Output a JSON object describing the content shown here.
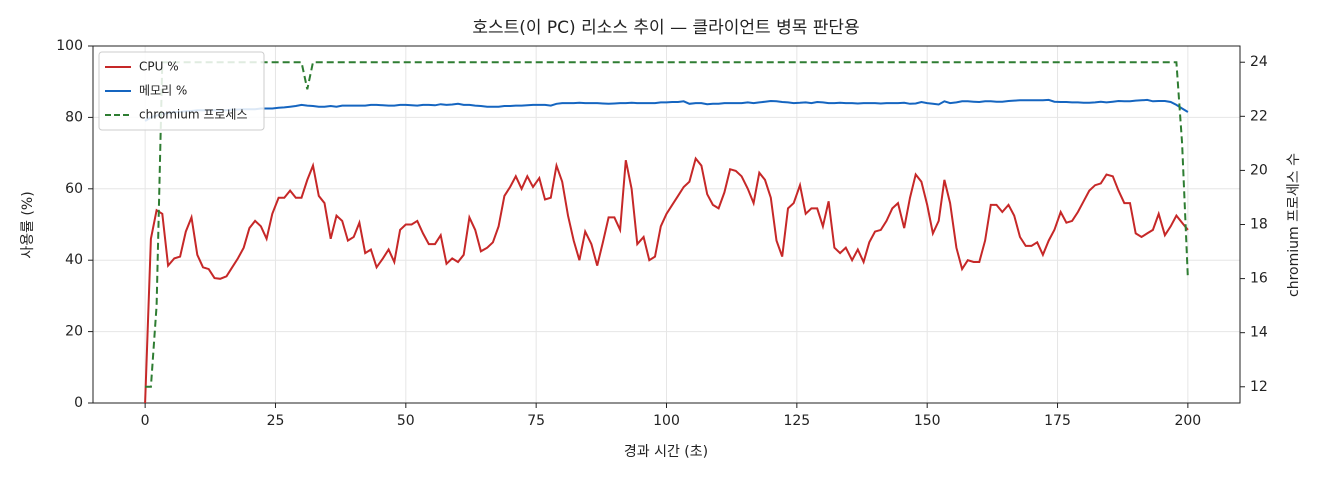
{
  "chart_data": {
    "type": "line",
    "title": "호스트(이 PC) 리소스 추이 — 클라이언트 병목 판단용",
    "xlabel": "경과 시간 (초)",
    "ylabel": "사용률 (%)",
    "y2label": "chromium 프로세스 수",
    "x": [
      0,
      1.1,
      2.2,
      3.3,
      4.4,
      5.6,
      6.7,
      7.8,
      8.9,
      10,
      11.1,
      12.2,
      13.3,
      14.4,
      15.6,
      16.7,
      17.8,
      18.9,
      20,
      21.1,
      22.2,
      23.3,
      24.4,
      25.6,
      26.7,
      27.8,
      28.9,
      30,
      31.1,
      32.2,
      33.3,
      34.4,
      35.6,
      36.7,
      37.8,
      38.9,
      40,
      41.1,
      42.2,
      43.3,
      44.4,
      45.6,
      46.7,
      47.8,
      48.9,
      50,
      51.1,
      52.2,
      53.3,
      54.4,
      55.6,
      56.7,
      57.8,
      58.9,
      60,
      61.1,
      62.2,
      63.3,
      64.4,
      65.6,
      66.7,
      67.8,
      68.9,
      70,
      71.1,
      72.2,
      73.3,
      74.4,
      75.6,
      76.7,
      77.8,
      78.9,
      80,
      81.1,
      82.2,
      83.3,
      84.4,
      85.6,
      86.7,
      87.8,
      88.9,
      90,
      91.1,
      92.2,
      93.3,
      94.4,
      95.6,
      96.7,
      97.8,
      98.9,
      100,
      101.1,
      102.2,
      103.3,
      104.4,
      105.6,
      106.7,
      107.8,
      108.9,
      110,
      111.1,
      112.2,
      113.3,
      114.4,
      115.6,
      116.7,
      117.8,
      118.9,
      120,
      121.1,
      122.2,
      123.3,
      124.4,
      125.6,
      126.7,
      127.8,
      128.9,
      130,
      131.1,
      132.2,
      133.3,
      134.4,
      135.6,
      136.7,
      137.8,
      138.9,
      140,
      141.1,
      142.2,
      143.3,
      144.4,
      145.6,
      146.7,
      147.8,
      148.9,
      150,
      151.1,
      152.2,
      153.3,
      154.4,
      155.6,
      156.7,
      157.8,
      158.9,
      160,
      161.1,
      162.2,
      163.3,
      164.4,
      165.6,
      166.7,
      167.8,
      168.9,
      170,
      171.1,
      172.2,
      173.3,
      174.4,
      175.6,
      176.7,
      177.8,
      178.9,
      180,
      181.1,
      182.2,
      183.3,
      184.4,
      185.6,
      186.7,
      187.8,
      188.9,
      190,
      191.1,
      192.2,
      193.3,
      194.4,
      195.6,
      196.7,
      197.8,
      198.9,
      200
    ],
    "series": [
      {
        "name": "CPU %",
        "color": "#c62828",
        "linestyle": "solid",
        "values": [
          0,
          46,
          54,
          53,
          38.5,
          40.5,
          41,
          48,
          52,
          41.5,
          38,
          37.5,
          35,
          34.8,
          35.5,
          38,
          40.5,
          43.5,
          49,
          51,
          49.5,
          46,
          53,
          57.5,
          57.5,
          59.5,
          57.5,
          57.5,
          62.5,
          66.5,
          58,
          56,
          46,
          52.5,
          51,
          45.5,
          46.5,
          50.5,
          42,
          43,
          38,
          40.5,
          43,
          39.5,
          48.5,
          50,
          50,
          51,
          47.5,
          44.5,
          44.5,
          47,
          39,
          40.5,
          39.5,
          41.5,
          52,
          48.5,
          42.5,
          43.5,
          45,
          49.5,
          58,
          60.5,
          63.5,
          60,
          63.5,
          60.5,
          63,
          57,
          57.5,
          66.5,
          62,
          52.5,
          45.5,
          40,
          48,
          44.5,
          38.5,
          45,
          52,
          52,
          48.5,
          68,
          60,
          44.5,
          46.5,
          40,
          41,
          49.5,
          53,
          55.5,
          58,
          60.5,
          62,
          68.5,
          66.5,
          58.5,
          55.5,
          54.5,
          59,
          65.5,
          65,
          63.5,
          60,
          56,
          64.5,
          62.5,
          57.5,
          45.5,
          41,
          54.5,
          56,
          61,
          53,
          54.5,
          54.5,
          49.5,
          56.5,
          43.5,
          42,
          43.5,
          40,
          43,
          39.5,
          45,
          48,
          48.5,
          51,
          54.5,
          56,
          49,
          57.5,
          64,
          62,
          55.5,
          47.5,
          51,
          62.5,
          56,
          43.5,
          37.5,
          40,
          39.5,
          39.5,
          45.5,
          55.5,
          55.5,
          53.5,
          55.5,
          52.5,
          46.5,
          44,
          44,
          45,
          41.5,
          45.5,
          48.5,
          53.5,
          50.5,
          51,
          53.5,
          56.5,
          59.5,
          61,
          61.5,
          64,
          63.5,
          59.5,
          56,
          56,
          47.5,
          46.5,
          47.5,
          48.5,
          53,
          47,
          49.5,
          52.5,
          50.5,
          48.5
        ]
      },
      {
        "name": "메모리 %",
        "color": "#1565c0",
        "linestyle": "solid",
        "values": [
          79,
          80,
          80.5,
          81,
          81.2,
          81.5,
          81.5,
          81.7,
          81.8,
          82,
          82,
          82,
          82,
          82,
          82,
          82.2,
          82.2,
          82.3,
          82.3,
          82.3,
          82.5,
          82.5,
          82.5,
          82.7,
          82.8,
          83,
          83.2,
          83.5,
          83.3,
          83.2,
          83,
          83,
          83.2,
          83,
          83.3,
          83.3,
          83.3,
          83.3,
          83.3,
          83.5,
          83.5,
          83.4,
          83.3,
          83.3,
          83.5,
          83.5,
          83.4,
          83.3,
          83.5,
          83.5,
          83.4,
          83.7,
          83.5,
          83.6,
          83.8,
          83.5,
          83.5,
          83.3,
          83.2,
          83,
          83,
          83,
          83.2,
          83.2,
          83.3,
          83.3,
          83.4,
          83.5,
          83.5,
          83.5,
          83.3,
          83.8,
          84,
          84,
          84,
          84.1,
          84,
          84,
          84,
          83.9,
          83.8,
          83.9,
          84,
          84,
          84.1,
          84,
          84,
          84,
          84,
          84.2,
          84.2,
          84.3,
          84.3,
          84.5,
          83.8,
          84,
          84,
          83.7,
          83.8,
          83.8,
          84,
          84,
          84,
          84,
          84.2,
          84,
          84.2,
          84.4,
          84.6,
          84.5,
          84.3,
          84.2,
          84,
          84.1,
          84.2,
          84,
          84.3,
          84.2,
          84,
          84,
          84.1,
          84,
          84,
          83.9,
          84,
          84,
          84,
          83.9,
          84,
          84,
          84,
          84.1,
          83.8,
          83.9,
          84.3,
          84,
          83.8,
          83.6,
          84.5,
          84,
          84.2,
          84.5,
          84.5,
          84.4,
          84.3,
          84.5,
          84.5,
          84.4,
          84.4,
          84.6,
          84.7,
          84.8,
          84.8,
          84.8,
          84.8,
          84.8,
          84.9,
          84.4,
          84.3,
          84.3,
          84.2,
          84.2,
          84.1,
          84.1,
          84.2,
          84.4,
          84.2,
          84.4,
          84.6,
          84.5,
          84.5,
          84.7,
          84.8,
          84.9,
          84.5,
          84.6,
          84.6,
          84.3,
          83.5,
          82.5,
          81.5
        ]
      },
      {
        "name": "chromium 프로세스",
        "color": "#2e7d32",
        "linestyle": "dashed",
        "axis": "y2",
        "values": [
          12,
          12,
          15,
          24,
          24,
          24,
          24,
          24,
          24,
          24,
          24,
          24,
          24,
          24,
          24,
          24,
          24,
          24,
          24,
          24,
          24,
          24,
          24,
          24,
          24,
          24,
          24,
          24,
          23,
          24,
          24,
          24,
          24,
          24,
          24,
          24,
          24,
          24,
          24,
          24,
          24,
          24,
          24,
          24,
          24,
          24,
          24,
          24,
          24,
          24,
          24,
          24,
          24,
          24,
          24,
          24,
          24,
          24,
          24,
          24,
          24,
          24,
          24,
          24,
          24,
          24,
          24,
          24,
          24,
          24,
          24,
          24,
          24,
          24,
          24,
          24,
          24,
          24,
          24,
          24,
          24,
          24,
          24,
          24,
          24,
          24,
          24,
          24,
          24,
          24,
          24,
          24,
          24,
          24,
          24,
          24,
          24,
          24,
          24,
          24,
          24,
          24,
          24,
          24,
          24,
          24,
          24,
          24,
          24,
          24,
          24,
          24,
          24,
          24,
          24,
          24,
          24,
          24,
          24,
          24,
          24,
          24,
          24,
          24,
          24,
          24,
          24,
          24,
          24,
          24,
          24,
          24,
          24,
          24,
          24,
          24,
          24,
          24,
          24,
          24,
          24,
          24,
          24,
          24,
          24,
          24,
          24,
          24,
          24,
          24,
          24,
          24,
          24,
          24,
          24,
          24,
          24,
          24,
          24,
          24,
          24,
          24,
          24,
          24,
          24,
          24,
          24,
          24,
          24,
          24,
          24,
          24,
          24,
          24,
          24,
          24,
          24,
          24,
          24,
          21,
          16
        ]
      }
    ],
    "xlim": [
      -10,
      210
    ],
    "xticks": [
      0,
      25,
      50,
      75,
      100,
      125,
      150,
      175,
      200
    ],
    "ylim": [
      0,
      100
    ],
    "yticks": [
      0,
      20,
      40,
      60,
      80,
      100
    ],
    "y2lim": [
      11.4,
      24.6
    ],
    "y2ticks": [
      12,
      14,
      16,
      18,
      20,
      22,
      24
    ],
    "grid": true,
    "legend": "upper left"
  }
}
